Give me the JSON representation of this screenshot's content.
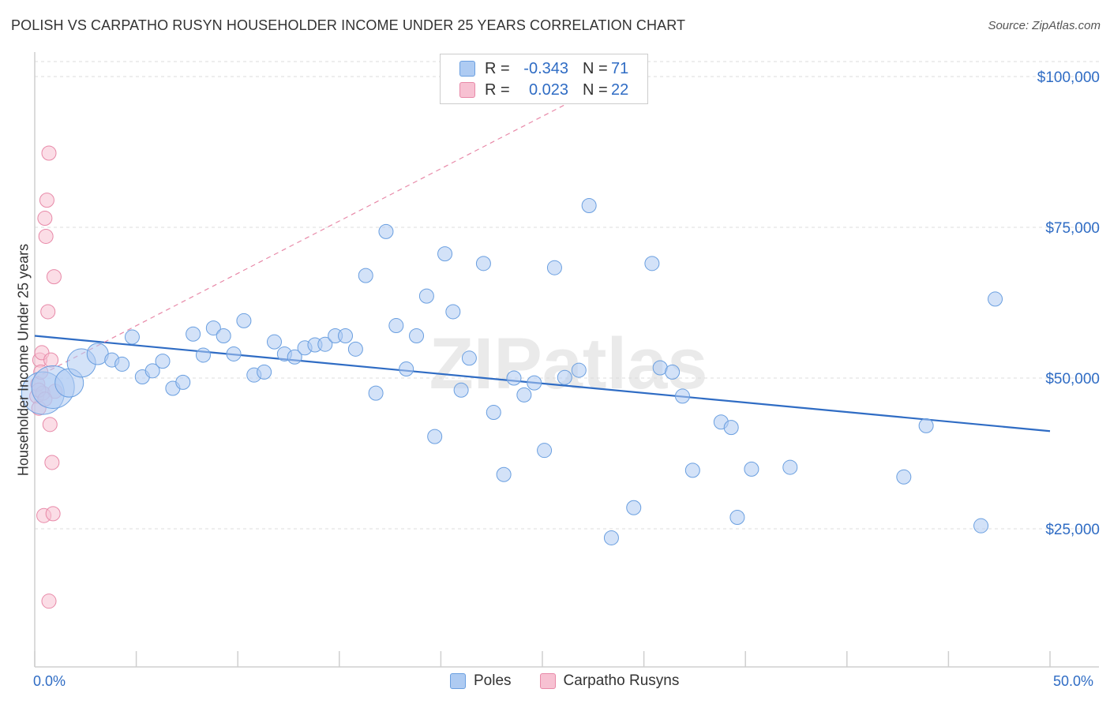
{
  "title": "POLISH VS CARPATHO RUSYN HOUSEHOLDER INCOME UNDER 25 YEARS CORRELATION CHART",
  "source": "Source: ZipAtlas.com",
  "watermark": "ZIPatlas",
  "legend": {
    "rows": [
      {
        "r_label": "R =",
        "r_value": "-0.343",
        "n_label": "N =",
        "n_value": "71",
        "color": "#aecbf2"
      },
      {
        "r_label": "R =",
        "r_value": "0.023",
        "n_label": "N =",
        "n_value": "22",
        "color": "#f7c1d2"
      }
    ]
  },
  "bottom_legend": [
    {
      "label": "Poles",
      "color": "#aecbf2"
    },
    {
      "label": "Carpatho Rusyns",
      "color": "#f7c1d2"
    }
  ],
  "x_min_label": "0.0%",
  "x_max_label": "50.0%",
  "chart_data": {
    "type": "scatter",
    "title": "POLISH VS CARPATHO RUSYN HOUSEHOLDER INCOME UNDER 25 YEARS CORRELATION CHART",
    "xlabel": "",
    "ylabel": "Householder Income Under 25 years",
    "xlim": [
      0,
      50
    ],
    "ylim": [
      0,
      105000
    ],
    "y_ticks": [
      25000,
      50000,
      75000,
      100000
    ],
    "y_tick_labels": [
      "$25,000",
      "$50,000",
      "$75,000",
      "$100,000"
    ],
    "x_tick_labels": [
      "0.0%",
      "50.0%"
    ],
    "grid": "horizontal dashed",
    "legend_position": "top-center",
    "series": [
      {
        "name": "Poles",
        "color": "#aecbf2",
        "stroke": "#6a9fe0",
        "trend": {
          "x": [
            0,
            50
          ],
          "y": [
            57000,
            41200
          ],
          "color": "#2f6cc4"
        },
        "points": [
          [
            0.4,
            47500,
            3
          ],
          [
            0.9,
            48500,
            3
          ],
          [
            1.7,
            49200,
            2
          ],
          [
            2.3,
            52500,
            2
          ],
          [
            3.1,
            54000,
            1.5
          ],
          [
            3.8,
            53000,
            1
          ],
          [
            4.3,
            52300,
            1
          ],
          [
            4.8,
            56800,
            1
          ],
          [
            5.3,
            50200,
            1
          ],
          [
            5.8,
            51200,
            1
          ],
          [
            6.3,
            52800,
            1
          ],
          [
            6.8,
            48300,
            1
          ],
          [
            7.3,
            49300,
            1
          ],
          [
            7.8,
            57300,
            1
          ],
          [
            8.3,
            53800,
            1
          ],
          [
            8.8,
            58300,
            1
          ],
          [
            9.3,
            57000,
            1
          ],
          [
            9.8,
            54000,
            1
          ],
          [
            10.3,
            59500,
            1
          ],
          [
            10.8,
            50500,
            1
          ],
          [
            11.3,
            51000,
            1
          ],
          [
            11.8,
            56000,
            1
          ],
          [
            12.3,
            54000,
            1
          ],
          [
            12.8,
            53500,
            1
          ],
          [
            13.3,
            55000,
            1
          ],
          [
            13.8,
            55500,
            1
          ],
          [
            14.3,
            55600,
            1
          ],
          [
            14.8,
            57000,
            1
          ],
          [
            15.3,
            57000,
            1
          ],
          [
            15.8,
            54800,
            1
          ],
          [
            16.3,
            67000,
            1
          ],
          [
            16.8,
            47500,
            1
          ],
          [
            17.3,
            74300,
            1
          ],
          [
            17.8,
            58700,
            1
          ],
          [
            18.3,
            51500,
            1
          ],
          [
            18.8,
            57000,
            1
          ],
          [
            19.3,
            63600,
            1
          ],
          [
            19.7,
            40300,
            1
          ],
          [
            20.2,
            70600,
            1
          ],
          [
            20.6,
            61000,
            1
          ],
          [
            21.0,
            48000,
            1
          ],
          [
            21.4,
            53300,
            1
          ],
          [
            22.1,
            69000,
            1
          ],
          [
            22.6,
            44300,
            1
          ],
          [
            23.1,
            34000,
            1
          ],
          [
            23.6,
            50000,
            1
          ],
          [
            24.1,
            47200,
            1
          ],
          [
            24.6,
            49200,
            1
          ],
          [
            25.1,
            38000,
            1
          ],
          [
            25.6,
            68300,
            1
          ],
          [
            26.1,
            50100,
            1
          ],
          [
            26.8,
            51300,
            1
          ],
          [
            27.3,
            78600,
            1
          ],
          [
            28.4,
            23500,
            1
          ],
          [
            29.5,
            28500,
            1
          ],
          [
            30.4,
            69000,
            1
          ],
          [
            30.8,
            51700,
            1
          ],
          [
            31.4,
            51000,
            1
          ],
          [
            31.9,
            47000,
            1
          ],
          [
            32.4,
            34700,
            1
          ],
          [
            33.8,
            42700,
            1
          ],
          [
            34.3,
            41800,
            1
          ],
          [
            34.6,
            26900,
            1
          ],
          [
            35.3,
            34900,
            1
          ],
          [
            37.2,
            35200,
            1
          ],
          [
            42.8,
            33600,
            1
          ],
          [
            43.9,
            42100,
            1
          ],
          [
            46.6,
            25500,
            1
          ],
          [
            47.3,
            63100,
            1
          ]
        ]
      },
      {
        "name": "Carpatho Rusyns",
        "color": "#f7c1d2",
        "stroke": "#e889a8",
        "trend": {
          "x": [
            0,
            26.5
          ],
          "y": [
            50000,
            96000
          ],
          "color": "#e889a8"
        },
        "points": [
          [
            0.1,
            47000,
            1
          ],
          [
            0.15,
            49000,
            1
          ],
          [
            0.2,
            45000,
            1
          ],
          [
            0.25,
            53000,
            1
          ],
          [
            0.3,
            51000,
            1
          ],
          [
            0.35,
            54200,
            1
          ],
          [
            0.4,
            47500,
            1
          ],
          [
            0.45,
            27200,
            1
          ],
          [
            0.5,
            76500,
            1
          ],
          [
            0.55,
            73500,
            1
          ],
          [
            0.6,
            79500,
            1
          ],
          [
            0.65,
            61000,
            1
          ],
          [
            0.7,
            87300,
            1
          ],
          [
            0.75,
            42300,
            1
          ],
          [
            0.8,
            53000,
            1
          ],
          [
            0.85,
            36000,
            1
          ],
          [
            0.9,
            27500,
            1
          ],
          [
            0.7,
            13000,
            1
          ],
          [
            0.95,
            66800,
            1
          ],
          [
            1.0,
            47800,
            1
          ],
          [
            0.2,
            48000,
            1
          ],
          [
            0.5,
            46500,
            1
          ]
        ]
      }
    ]
  }
}
